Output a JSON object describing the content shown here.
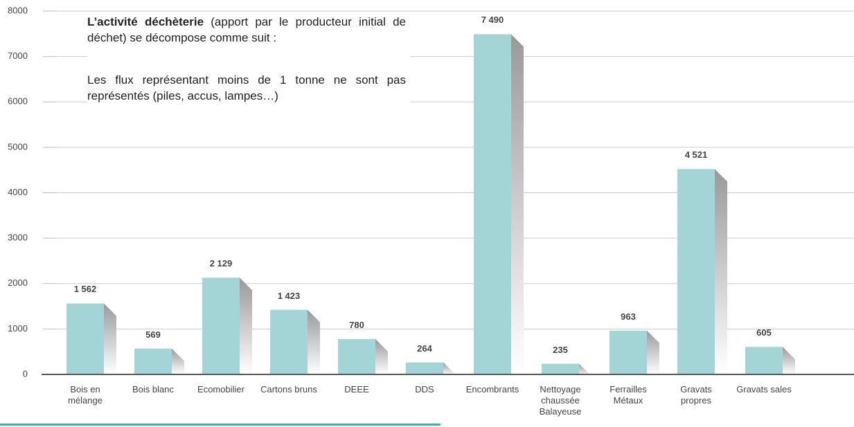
{
  "chart_data": {
    "type": "bar",
    "annotation_bold": "L’activité déchèterie",
    "annotation": "(apport par le producteur initial de déchet) se décompose comme suit :",
    "note": "Les flux représentant moins de 1 tonne ne sont pas représentés (piles, accus, lampes…)",
    "categories": [
      "Bois en mélange",
      "Bois blanc",
      "Ecomobilier",
      "Cartons bruns",
      "DEEE",
      "DDS",
      "Encombrants",
      "Nettoyage chaussée Balayeuse",
      "Ferrailles Métaux",
      "Gravats propres",
      "Gravats sales"
    ],
    "values": [
      1562,
      569,
      2129,
      1423,
      780,
      264,
      7490,
      235,
      963,
      4521,
      605
    ],
    "value_labels": [
      "1 562",
      "569",
      "2 129",
      "1 423",
      "780",
      "264",
      "7 490",
      "235",
      "963",
      "4 521",
      "605"
    ],
    "color": "#a3d5d7",
    "ylim": [
      0,
      8000
    ],
    "yticks": [
      0,
      1000,
      2000,
      3000,
      4000,
      5000,
      6000,
      7000,
      8000
    ],
    "grid": true
  }
}
